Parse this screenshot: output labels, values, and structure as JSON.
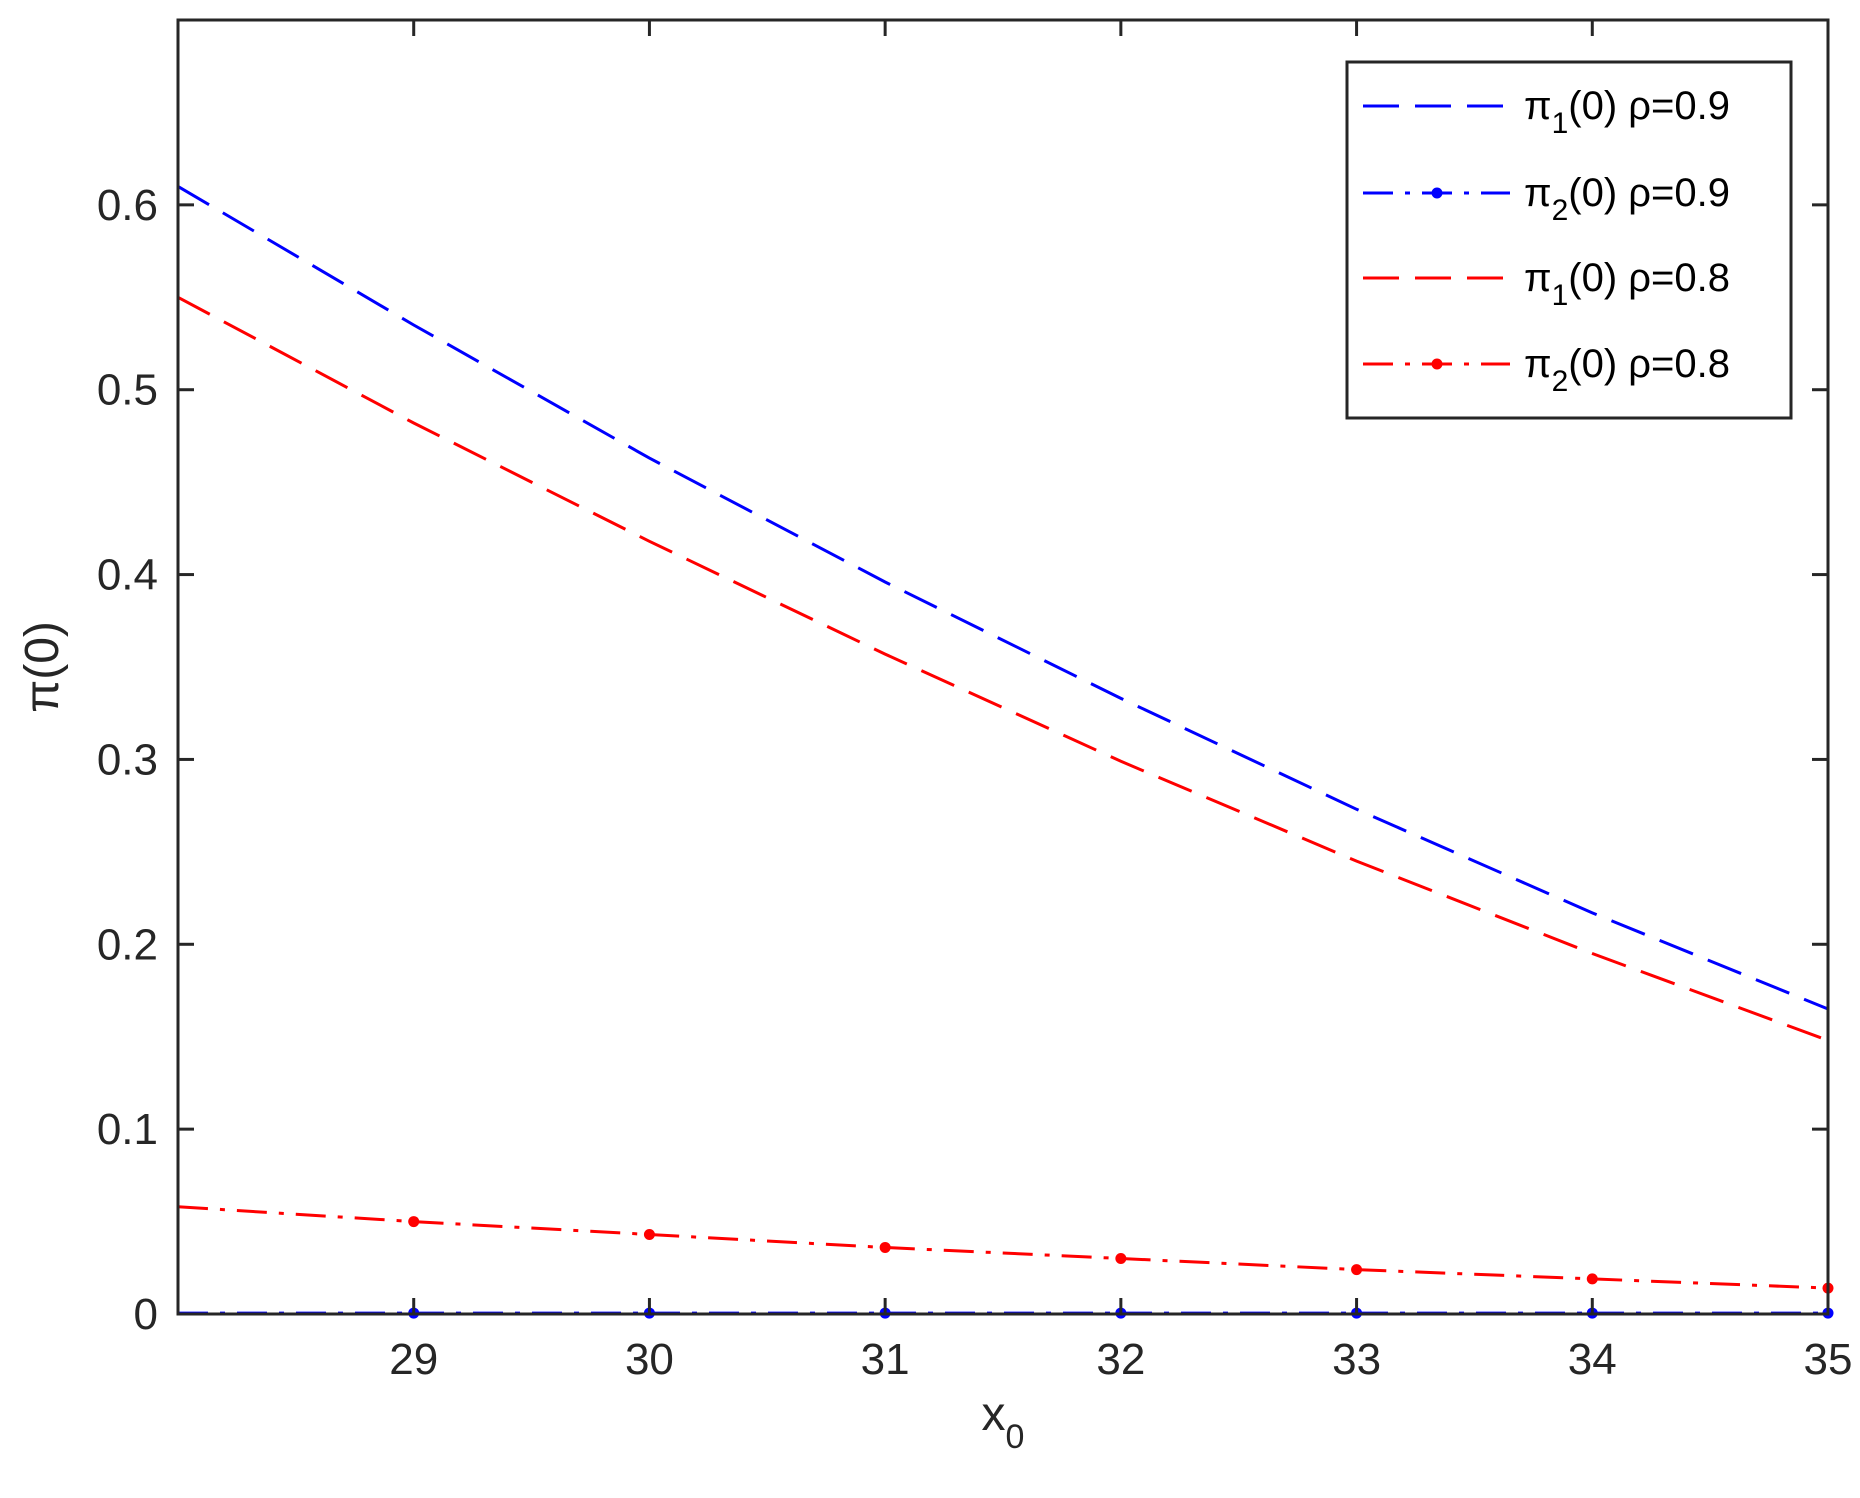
{
  "chart_data": {
    "type": "line",
    "title": "",
    "xlabel": "x",
    "xlabel_sub": "0",
    "ylabel": "π(0)",
    "xlim": [
      28,
      35
    ],
    "ylim": [
      0,
      0.7
    ],
    "xticks": [
      29,
      30,
      31,
      32,
      33,
      34,
      35
    ],
    "yticks": [
      0,
      0.1,
      0.2,
      0.3,
      0.4,
      0.5,
      0.6
    ],
    "ytick_labels": [
      "0",
      "0.1",
      "0.2",
      "0.3",
      "0.4",
      "0.5",
      "0.6"
    ],
    "grid": false,
    "legend_position": "top-right",
    "x": [
      28,
      29,
      30,
      31,
      32,
      33,
      34,
      35
    ],
    "series": [
      {
        "name_main": "π",
        "name_sub": "1",
        "name_rest": "(0)  ρ=0.9",
        "color": "#0000ff",
        "style": "dashed",
        "markers": false,
        "values": [
          0.61,
          0.535,
          0.463,
          0.396,
          0.333,
          0.273,
          0.217,
          0.165
        ]
      },
      {
        "name_main": "π",
        "name_sub": "2",
        "name_rest": "(0)  ρ=0.9",
        "color": "#0000ff",
        "style": "dashdot",
        "markers": true,
        "values": [
          0.0005,
          0.0005,
          0.0005,
          0.0005,
          0.0005,
          0.0005,
          0.0005,
          0.0005
        ]
      },
      {
        "name_main": "π",
        "name_sub": "1",
        "name_rest": "(0)  ρ=0.8",
        "color": "#ff0000",
        "style": "dashed",
        "markers": false,
        "values": [
          0.55,
          0.482,
          0.418,
          0.357,
          0.299,
          0.245,
          0.195,
          0.148
        ]
      },
      {
        "name_main": "π",
        "name_sub": "2",
        "name_rest": "(0)  ρ=0.8",
        "color": "#ff0000",
        "style": "dashdot",
        "markers": true,
        "values": [
          0.058,
          0.05,
          0.043,
          0.036,
          0.03,
          0.024,
          0.019,
          0.014
        ]
      }
    ]
  }
}
